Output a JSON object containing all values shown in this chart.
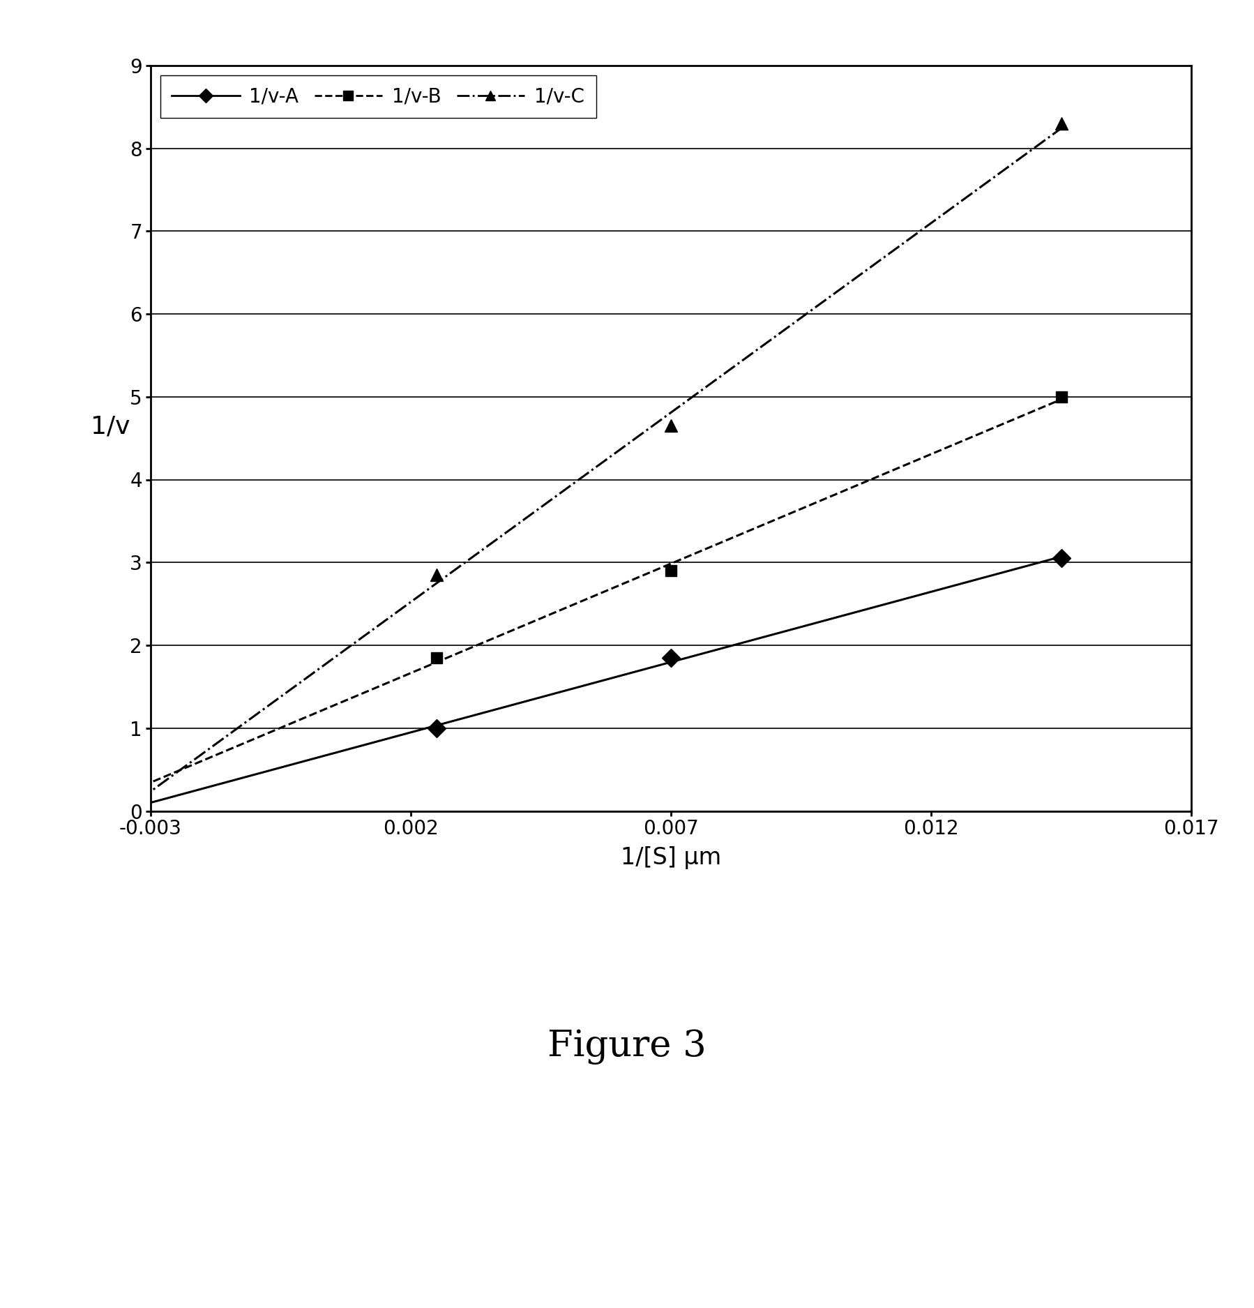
{
  "series": [
    {
      "name": "1/v-A",
      "x": [
        0.0025,
        0.007,
        0.0145
      ],
      "y": [
        1.0,
        1.85,
        3.05
      ],
      "linestyle": "-",
      "marker": "D",
      "markersize": 13,
      "color": "#000000",
      "linewidth": 2.2
    },
    {
      "name": "1/v-B",
      "x": [
        0.0025,
        0.007,
        0.0145
      ],
      "y": [
        1.85,
        2.9,
        5.0
      ],
      "linestyle": "--",
      "marker": "s",
      "markersize": 12,
      "color": "#000000",
      "linewidth": 2.2
    },
    {
      "name": "1/v-C",
      "x": [
        0.0025,
        0.007,
        0.0145
      ],
      "y": [
        2.85,
        4.65,
        8.3
      ],
      "linestyle": "-.",
      "marker": "^",
      "markersize": 13,
      "color": "#000000",
      "linewidth": 2.2
    }
  ],
  "xlim": [
    -0.003,
    0.017
  ],
  "ylim": [
    0,
    9
  ],
  "xticks": [
    -0.003,
    0.002,
    0.007,
    0.012,
    0.017
  ],
  "yticks": [
    0,
    1,
    2,
    3,
    4,
    5,
    6,
    7,
    8,
    9
  ],
  "xlabel": "1/[S] μm",
  "ylabel": "1/v",
  "title": "Figure 3",
  "legend_labels": [
    "1/v-A",
    "1/v-B",
    "1/v-C"
  ],
  "background_color": "#ffffff"
}
